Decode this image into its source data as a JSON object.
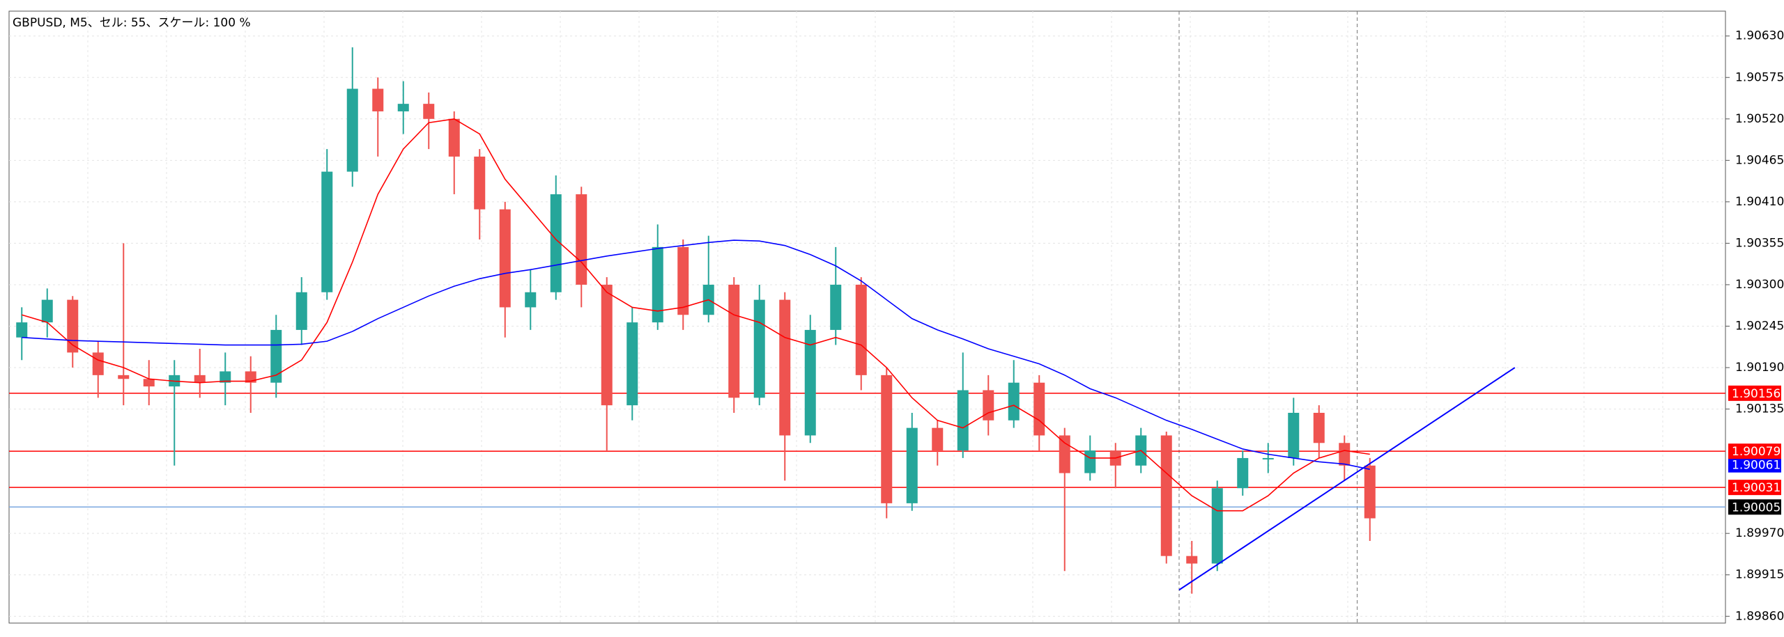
{
  "chart_data": {
    "type": "candlestick",
    "title": "GBPUSD, M5、セル: 55、スケール: 100 %",
    "ylim": [
      1.89851,
      1.90663
    ],
    "yticks": [
      {
        "value": 1.9063,
        "label": "1.90630"
      },
      1.90575,
      {
        "value": 1.9052,
        "label": "1.90520"
      },
      1.90465,
      {
        "value": 1.9041,
        "label": "1.90410"
      },
      1.90355,
      {
        "value": 1.903,
        "label": "1.90300"
      },
      1.90245,
      {
        "value": 1.9019,
        "label": "1.90190"
      },
      1.90135,
      {
        "value": 1.8997,
        "label": "1.89970"
      },
      1.89915,
      {
        "value": 1.8986,
        "label": "1.89860"
      }
    ],
    "grid": true,
    "up_color": "#26a69a",
    "down_color": "#ef5350",
    "candles": [
      {
        "o": 1.9023,
        "h": 1.9027,
        "l": 1.902,
        "c": 1.9025
      },
      {
        "o": 1.9025,
        "h": 1.90295,
        "l": 1.9023,
        "c": 1.9028
      },
      {
        "o": 1.9028,
        "h": 1.90285,
        "l": 1.9019,
        "c": 1.9021
      },
      {
        "o": 1.9021,
        "h": 1.90225,
        "l": 1.9015,
        "c": 1.9018
      },
      {
        "o": 1.9018,
        "h": 1.90355,
        "l": 1.9014,
        "c": 1.90175
      },
      {
        "o": 1.90175,
        "h": 1.902,
        "l": 1.9014,
        "c": 1.90165
      },
      {
        "o": 1.90165,
        "h": 1.902,
        "l": 1.9006,
        "c": 1.9018
      },
      {
        "o": 1.9018,
        "h": 1.90215,
        "l": 1.9015,
        "c": 1.9017
      },
      {
        "o": 1.9017,
        "h": 1.9021,
        "l": 1.9014,
        "c": 1.90185
      },
      {
        "o": 1.90185,
        "h": 1.90205,
        "l": 1.9013,
        "c": 1.9017
      },
      {
        "o": 1.9017,
        "h": 1.9026,
        "l": 1.9015,
        "c": 1.9024
      },
      {
        "o": 1.9024,
        "h": 1.9031,
        "l": 1.9022,
        "c": 1.9029
      },
      {
        "o": 1.9029,
        "h": 1.9048,
        "l": 1.9028,
        "c": 1.9045
      },
      {
        "o": 1.9045,
        "h": 1.90615,
        "l": 1.9043,
        "c": 1.9056
      },
      {
        "o": 1.9056,
        "h": 1.90575,
        "l": 1.9047,
        "c": 1.9053
      },
      {
        "o": 1.9053,
        "h": 1.9057,
        "l": 1.905,
        "c": 1.9054
      },
      {
        "o": 1.9054,
        "h": 1.90555,
        "l": 1.9048,
        "c": 1.9052
      },
      {
        "o": 1.9052,
        "h": 1.9053,
        "l": 1.9042,
        "c": 1.9047
      },
      {
        "o": 1.9047,
        "h": 1.9048,
        "l": 1.9036,
        "c": 1.904
      },
      {
        "o": 1.904,
        "h": 1.9041,
        "l": 1.9023,
        "c": 1.9027
      },
      {
        "o": 1.9027,
        "h": 1.9032,
        "l": 1.9024,
        "c": 1.9029
      },
      {
        "o": 1.9029,
        "h": 1.90445,
        "l": 1.9028,
        "c": 1.9042
      },
      {
        "o": 1.9042,
        "h": 1.9043,
        "l": 1.9027,
        "c": 1.903
      },
      {
        "o": 1.903,
        "h": 1.9031,
        "l": 1.9008,
        "c": 1.9014
      },
      {
        "o": 1.9014,
        "h": 1.9027,
        "l": 1.9012,
        "c": 1.9025
      },
      {
        "o": 1.9025,
        "h": 1.9038,
        "l": 1.9024,
        "c": 1.9035
      },
      {
        "o": 1.9035,
        "h": 1.9036,
        "l": 1.9024,
        "c": 1.9026
      },
      {
        "o": 1.9026,
        "h": 1.90365,
        "l": 1.9025,
        "c": 1.903
      },
      {
        "o": 1.903,
        "h": 1.9031,
        "l": 1.9013,
        "c": 1.9015
      },
      {
        "o": 1.9015,
        "h": 1.903,
        "l": 1.9014,
        "c": 1.9028
      },
      {
        "o": 1.9028,
        "h": 1.9029,
        "l": 1.9004,
        "c": 1.901
      },
      {
        "o": 1.901,
        "h": 1.9026,
        "l": 1.9009,
        "c": 1.9024
      },
      {
        "o": 1.9024,
        "h": 1.9035,
        "l": 1.9022,
        "c": 1.903
      },
      {
        "o": 1.903,
        "h": 1.9031,
        "l": 1.9016,
        "c": 1.9018
      },
      {
        "o": 1.9018,
        "h": 1.9019,
        "l": 1.8999,
        "c": 1.9001
      },
      {
        "o": 1.9001,
        "h": 1.9013,
        "l": 1.9,
        "c": 1.9011
      },
      {
        "o": 1.9011,
        "h": 1.9012,
        "l": 1.9006,
        "c": 1.9008
      },
      {
        "o": 1.9008,
        "h": 1.9021,
        "l": 1.9007,
        "c": 1.9016
      },
      {
        "o": 1.9016,
        "h": 1.9018,
        "l": 1.901,
        "c": 1.9012
      },
      {
        "o": 1.9012,
        "h": 1.902,
        "l": 1.9011,
        "c": 1.9017
      },
      {
        "o": 1.9017,
        "h": 1.9018,
        "l": 1.9008,
        "c": 1.901
      },
      {
        "o": 1.901,
        "h": 1.9011,
        "l": 1.8992,
        "c": 1.9005
      },
      {
        "o": 1.9005,
        "h": 1.901,
        "l": 1.9004,
        "c": 1.9008
      },
      {
        "o": 1.9008,
        "h": 1.9009,
        "l": 1.9003,
        "c": 1.9006
      },
      {
        "o": 1.9006,
        "h": 1.9011,
        "l": 1.9005,
        "c": 1.901
      },
      {
        "o": 1.901,
        "h": 1.90105,
        "l": 1.8993,
        "c": 1.8994
      },
      {
        "o": 1.8994,
        "h": 1.8996,
        "l": 1.8989,
        "c": 1.8993
      },
      {
        "o": 1.8993,
        "h": 1.9004,
        "l": 1.8992,
        "c": 1.9003
      },
      {
        "o": 1.9003,
        "h": 1.9008,
        "l": 1.9002,
        "c": 1.9007
      },
      {
        "o": 1.9007,
        "h": 1.9009,
        "l": 1.9005,
        "c": 1.9007
      },
      {
        "o": 1.9007,
        "h": 1.9015,
        "l": 1.9006,
        "c": 1.9013
      },
      {
        "o": 1.9013,
        "h": 1.9014,
        "l": 1.9007,
        "c": 1.9009
      },
      {
        "o": 1.9009,
        "h": 1.901,
        "l": 1.9004,
        "c": 1.9006
      },
      {
        "o": 1.9006,
        "h": 1.9007,
        "l": 1.8996,
        "c": 1.8999
      }
    ],
    "ma_fast": {
      "color": "#ff0000",
      "values": [
        1.9026,
        1.9025,
        1.9022,
        1.902,
        1.9019,
        1.90175,
        1.90172,
        1.9017,
        1.90172,
        1.90172,
        1.9018,
        1.902,
        1.9025,
        1.9033,
        1.9042,
        1.9048,
        1.90515,
        1.9052,
        1.905,
        1.9044,
        1.904,
        1.9036,
        1.9033,
        1.9029,
        1.9027,
        1.90265,
        1.9027,
        1.9028,
        1.9026,
        1.9025,
        1.9023,
        1.9022,
        1.9023,
        1.9022,
        1.9019,
        1.9015,
        1.9012,
        1.9011,
        1.9013,
        1.9014,
        1.9012,
        1.9009,
        1.9007,
        1.9007,
        1.9008,
        1.9005,
        1.9002,
        1.9,
        1.9,
        1.9002,
        1.9005,
        1.9007,
        1.9008,
        1.90075
      ]
    },
    "ma_slow": {
      "color": "#0000ff",
      "values": [
        1.9023,
        1.90228,
        1.90226,
        1.90225,
        1.90224,
        1.90223,
        1.90222,
        1.90221,
        1.9022,
        1.9022,
        1.9022,
        1.90221,
        1.90225,
        1.90238,
        1.90255,
        1.9027,
        1.90285,
        1.90298,
        1.90308,
        1.90315,
        1.9032,
        1.90326,
        1.90332,
        1.90338,
        1.90343,
        1.90348,
        1.90352,
        1.90356,
        1.90359,
        1.90358,
        1.90352,
        1.9034,
        1.90325,
        1.90305,
        1.9028,
        1.90255,
        1.9024,
        1.90228,
        1.90215,
        1.90205,
        1.90195,
        1.9018,
        1.90162,
        1.9015,
        1.90135,
        1.9012,
        1.90108,
        1.90095,
        1.90082,
        1.90075,
        1.9007,
        1.90065,
        1.90062,
        1.90055
      ]
    },
    "trend_line": {
      "color": "#0000ff",
      "values": [
        1.89895,
        1.9019
      ]
    },
    "levels": [
      {
        "value": 1.90156,
        "color": "#ff0000",
        "line": true
      },
      {
        "value": 1.90061,
        "color": "#0000ff",
        "line": false
      },
      {
        "value": 1.90079,
        "color": "#ff0000",
        "line": true
      },
      {
        "value": 1.90031,
        "color": "#ff0000",
        "line": true
      },
      {
        "value": 1.90005,
        "color": "#000000",
        "line_color": "#7aa7e0",
        "line": true
      }
    ]
  }
}
